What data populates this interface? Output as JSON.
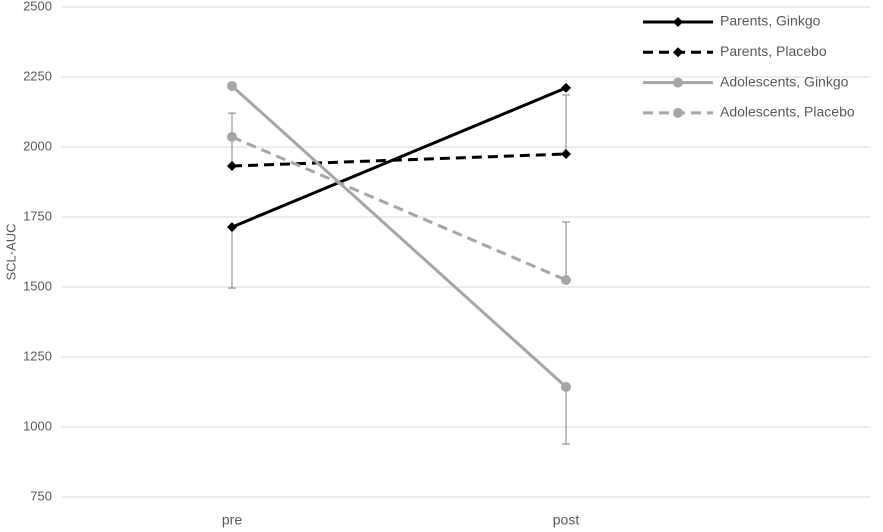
{
  "chart_data": {
    "type": "line",
    "y_label": "SCL-AUC",
    "categories": [
      "pre",
      "post"
    ],
    "ylim": [
      750,
      2500
    ],
    "yticks": [
      750,
      1000,
      1250,
      1500,
      1750,
      2000,
      2250,
      2500
    ],
    "grid": true,
    "legend": "top-right",
    "series": [
      {
        "name": "Parents, Ginkgo",
        "color": "#000000",
        "dash": false,
        "marker": "diamond",
        "values": [
          1714,
          2211
        ],
        "errors": [
          218,
          null
        ],
        "error_sides": [
          "down",
          null
        ]
      },
      {
        "name": "Parents, Placebo",
        "color": "#000000",
        "dash": true,
        "marker": "diamond",
        "values": [
          1932,
          1975
        ],
        "errors": [
          189,
          211
        ],
        "error_sides": [
          "up",
          "up"
        ]
      },
      {
        "name": "Adolescents, Ginkgo",
        "color": "#a6a6a6",
        "dash": false,
        "marker": "circle",
        "values": [
          2218,
          1143
        ],
        "errors": [
          null,
          204
        ],
        "error_sides": [
          null,
          "down"
        ]
      },
      {
        "name": "Adolescents, Placebo",
        "color": "#a6a6a6",
        "dash": true,
        "marker": "circle",
        "values": [
          2036,
          1525
        ],
        "errors": [
          null,
          207
        ],
        "error_sides": [
          null,
          "up"
        ]
      }
    ]
  }
}
